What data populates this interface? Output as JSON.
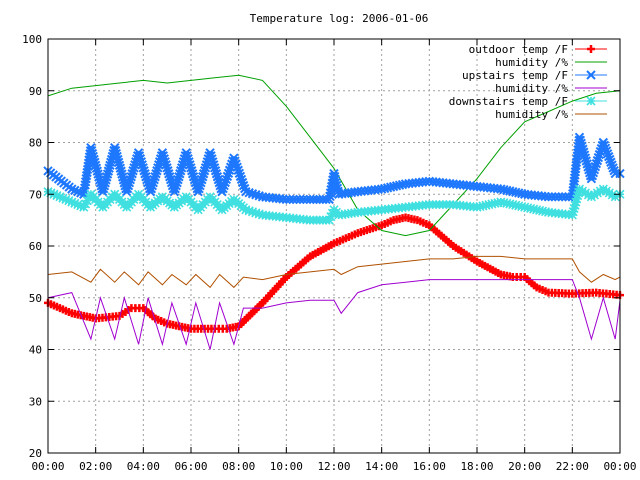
{
  "chart_data": {
    "type": "line",
    "title": "Temperature log: 2006-01-06",
    "xlabel": "",
    "ylabel": "",
    "xlim": [
      0,
      24
    ],
    "ylim": [
      20,
      100
    ],
    "x_ticks": [
      "00:00",
      "02:00",
      "04:00",
      "06:00",
      "08:00",
      "10:00",
      "12:00",
      "14:00",
      "16:00",
      "18:00",
      "20:00",
      "22:00",
      "00:00"
    ],
    "y_ticks": [
      "20",
      "30",
      "40",
      "50",
      "60",
      "70",
      "80",
      "90",
      "100"
    ],
    "grid": true,
    "legend_position": "top-right",
    "series": [
      {
        "name": "outdoor temp /F",
        "color": "#ff0000",
        "style": "line-plus",
        "x": [
          0,
          1,
          2,
          3,
          3.5,
          4,
          4.5,
          5,
          6,
          7,
          7.5,
          8,
          9,
          10,
          11,
          12,
          13,
          14,
          14.5,
          15,
          15.5,
          16,
          17,
          18,
          19,
          19.5,
          20,
          20.5,
          21,
          22,
          23,
          24
        ],
        "y": [
          49,
          47,
          46,
          46.5,
          48,
          48,
          46,
          45,
          44,
          44,
          44,
          44.5,
          49,
          54,
          58,
          60.5,
          62.5,
          64,
          65,
          65.5,
          65,
          64,
          60,
          57,
          54.5,
          54,
          54,
          52,
          51,
          50.8,
          51,
          50.5
        ]
      },
      {
        "name": "humidity /%",
        "color": "#00a000",
        "style": "line",
        "x": [
          0,
          1,
          2,
          3,
          4,
          5,
          6,
          7,
          8,
          9,
          10,
          11,
          12,
          13,
          14,
          15,
          16,
          17,
          18,
          19,
          20,
          21,
          22,
          23,
          24
        ],
        "y": [
          89,
          90.5,
          91,
          91.5,
          92,
          91.5,
          92,
          92.5,
          93,
          92,
          87,
          81,
          75,
          67,
          63,
          62,
          63,
          68,
          73,
          79,
          84,
          86,
          88,
          89.5,
          90
        ]
      },
      {
        "name": "upstairs temp /F",
        "color": "#1e78ff",
        "style": "line-cross",
        "x": [
          0,
          1,
          1.5,
          1.8,
          2.3,
          2.8,
          3.3,
          3.8,
          4.3,
          4.8,
          5.3,
          5.8,
          6.3,
          6.8,
          7.3,
          7.8,
          8.3,
          9,
          10,
          11,
          11.8,
          12,
          12.2,
          13,
          14,
          15,
          16,
          17,
          18,
          19,
          20,
          21,
          22,
          22.3,
          22.8,
          23.3,
          23.8,
          24
        ],
        "y": [
          74.5,
          71,
          70,
          79,
          70.5,
          79,
          70.5,
          78,
          70.5,
          78,
          70.5,
          78,
          70.5,
          78,
          70.5,
          77,
          70.5,
          69.5,
          69,
          69,
          69,
          74,
          70,
          70.5,
          71,
          72,
          72.5,
          72,
          71.5,
          71,
          70,
          69.5,
          69.5,
          81,
          73,
          80,
          74,
          74
        ]
      },
      {
        "name": "humidity /%",
        "color": "#a000d0",
        "style": "line",
        "x": [
          0,
          1,
          1.8,
          2.2,
          2.8,
          3.2,
          3.8,
          4.2,
          4.8,
          5.2,
          5.8,
          6.2,
          6.8,
          7.2,
          7.8,
          8.2,
          9,
          10,
          11,
          12,
          12.3,
          13,
          14,
          15,
          16,
          17,
          18,
          19,
          20,
          21,
          22,
          22.3,
          22.8,
          23.3,
          23.8,
          24
        ],
        "y": [
          50,
          51,
          42,
          50,
          42,
          50,
          41,
          50,
          41,
          49,
          41,
          49,
          40,
          49,
          41,
          48,
          48,
          49,
          49.5,
          49.5,
          47,
          51,
          52.5,
          53,
          53.5,
          53.5,
          53.5,
          53.5,
          53.5,
          53.5,
          53.5,
          50,
          42,
          50,
          42,
          49.5
        ]
      },
      {
        "name": "downstairs temp /F",
        "color": "#40e0e0",
        "style": "line-star",
        "x": [
          0,
          1,
          1.5,
          1.8,
          2.3,
          2.8,
          3.3,
          3.8,
          4.3,
          4.8,
          5.3,
          5.8,
          6.3,
          6.8,
          7.3,
          7.8,
          8.3,
          9,
          10,
          11,
          11.8,
          12,
          12.2,
          13,
          14,
          15,
          16,
          17,
          18,
          19,
          20,
          21,
          22,
          22.3,
          22.8,
          23.3,
          23.8,
          24
        ],
        "y": [
          70.5,
          68.5,
          67.5,
          70,
          67.5,
          70,
          67.5,
          70,
          67.5,
          69.5,
          67.5,
          69.5,
          67,
          69.5,
          67,
          69,
          67,
          66,
          65.5,
          65,
          65,
          67,
          66,
          66.5,
          67,
          67.5,
          68,
          68,
          67.5,
          68.5,
          67.5,
          66.5,
          66,
          71,
          69.5,
          71,
          69.5,
          70
        ]
      },
      {
        "name": "humidity /%",
        "color": "#b05000",
        "style": "line",
        "x": [
          0,
          1,
          1.8,
          2.2,
          2.8,
          3.2,
          3.8,
          4.2,
          4.8,
          5.2,
          5.8,
          6.2,
          6.8,
          7.2,
          7.8,
          8.2,
          9,
          10,
          11,
          12,
          12.3,
          13,
          14,
          15,
          16,
          17,
          18,
          19,
          20,
          21,
          22,
          22.3,
          22.8,
          23.3,
          23.8,
          24
        ],
        "y": [
          54.5,
          55,
          53,
          55.5,
          53,
          55,
          52.5,
          55,
          52.5,
          54.5,
          52.5,
          54.5,
          52,
          54.5,
          52,
          54,
          53.5,
          54.5,
          55,
          55.5,
          54.5,
          56,
          56.5,
          57,
          57.5,
          57.5,
          58,
          58,
          57.5,
          57.5,
          57.5,
          55,
          53,
          54.5,
          53.5,
          54
        ]
      }
    ]
  }
}
